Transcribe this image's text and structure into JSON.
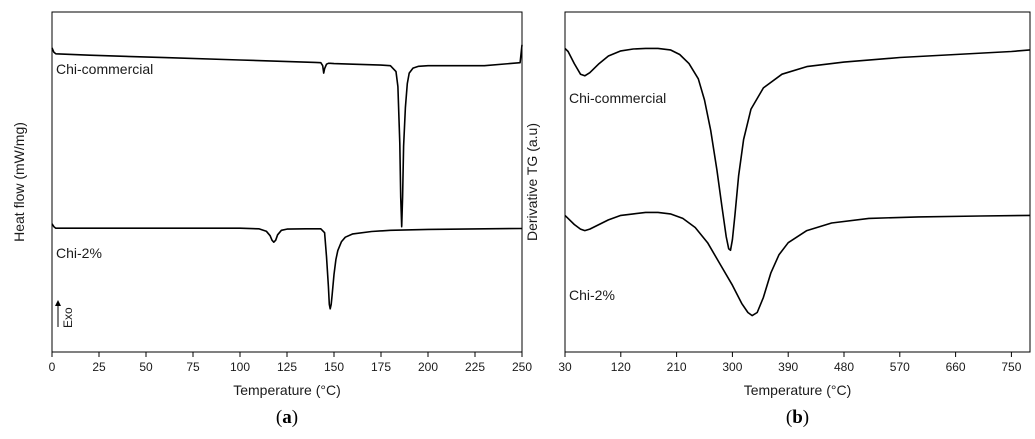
{
  "chart_data": [
    {
      "type": "line",
      "panel_label": {
        "open": "(",
        "letter": "a",
        "close": ")"
      },
      "xlabel": "Temperature (°C)",
      "ylabel": "Heat flow (mW/mg)",
      "xlim": [
        0,
        250
      ],
      "ylim": [
        -1.02,
        0.12
      ],
      "y_ticks_shown": false,
      "grid": false,
      "xticks": [
        0,
        25,
        50,
        75,
        100,
        125,
        150,
        175,
        200,
        225,
        250
      ],
      "annotation": {
        "text": "Exo",
        "direction": "up"
      },
      "series": [
        {
          "name": "Chi-commercial",
          "x": [
            0,
            1,
            2,
            20,
            60,
            100,
            140,
            143,
            144,
            144.5,
            145,
            146,
            147,
            148,
            150,
            160,
            175,
            180,
            183,
            184,
            185,
            185.5,
            186,
            186.5,
            187,
            188,
            189,
            190,
            192,
            195,
            200,
            210,
            230,
            249,
            250
          ],
          "y": [
            0.0,
            -0.015,
            -0.02,
            -0.025,
            -0.033,
            -0.041,
            -0.049,
            -0.05,
            -0.06,
            -0.085,
            -0.07,
            -0.055,
            -0.052,
            -0.052,
            -0.053,
            -0.055,
            -0.058,
            -0.06,
            -0.08,
            -0.13,
            -0.32,
            -0.5,
            -0.6,
            -0.5,
            -0.33,
            -0.2,
            -0.12,
            -0.085,
            -0.068,
            -0.062,
            -0.06,
            -0.06,
            -0.06,
            -0.05,
            0.01
          ]
        },
        {
          "name": "Chi-2%",
          "x": [
            0,
            1,
            2,
            20,
            60,
            100,
            110,
            114,
            116,
            117,
            118,
            119,
            120,
            122,
            125,
            135,
            143,
            145,
            146,
            147,
            147.5,
            148,
            148.5,
            149,
            150,
            151,
            152,
            154,
            156,
            160,
            170,
            180,
            200,
            230,
            250
          ],
          "y": [
            -0.59,
            -0.6,
            -0.605,
            -0.605,
            -0.605,
            -0.605,
            -0.607,
            -0.615,
            -0.63,
            -0.645,
            -0.652,
            -0.645,
            -0.627,
            -0.612,
            -0.608,
            -0.607,
            -0.607,
            -0.62,
            -0.7,
            -0.8,
            -0.86,
            -0.875,
            -0.86,
            -0.83,
            -0.76,
            -0.71,
            -0.68,
            -0.65,
            -0.635,
            -0.624,
            -0.616,
            -0.612,
            -0.609,
            -0.607,
            -0.606
          ]
        }
      ]
    },
    {
      "type": "line",
      "panel_label": {
        "open": "(",
        "letter": "b",
        "close": ")"
      },
      "xlabel": "Temperature (°C)",
      "ylabel": "Derivative TG (a.u)",
      "xlim": [
        30,
        780
      ],
      "ylim": [
        -1.0,
        0.12
      ],
      "y_ticks_shown": false,
      "grid": false,
      "xticks": [
        30,
        120,
        210,
        300,
        390,
        480,
        570,
        660,
        750
      ],
      "series": [
        {
          "name": "Chi-commercial",
          "x": [
            30,
            35,
            45,
            55,
            62,
            70,
            85,
            100,
            120,
            140,
            160,
            180,
            200,
            215,
            230,
            245,
            255,
            265,
            275,
            283,
            290,
            294,
            297,
            300,
            304,
            310,
            318,
            330,
            350,
            380,
            420,
            480,
            570,
            660,
            750,
            780
          ],
          "y": [
            0.0,
            -0.01,
            -0.05,
            -0.085,
            -0.09,
            -0.08,
            -0.05,
            -0.025,
            -0.008,
            -0.002,
            0.0,
            0.0,
            -0.005,
            -0.02,
            -0.05,
            -0.1,
            -0.17,
            -0.27,
            -0.4,
            -0.52,
            -0.62,
            -0.66,
            -0.665,
            -0.63,
            -0.55,
            -0.42,
            -0.3,
            -0.2,
            -0.13,
            -0.085,
            -0.06,
            -0.045,
            -0.03,
            -0.02,
            -0.01,
            -0.005
          ]
        },
        {
          "name": "Chi-2%",
          "x": [
            30,
            35,
            45,
            55,
            62,
            70,
            85,
            100,
            120,
            140,
            160,
            180,
            200,
            220,
            240,
            260,
            280,
            300,
            315,
            325,
            332,
            340,
            350,
            362,
            375,
            390,
            420,
            460,
            520,
            600,
            700,
            780
          ],
          "y": [
            -0.55,
            -0.56,
            -0.58,
            -0.595,
            -0.6,
            -0.595,
            -0.58,
            -0.565,
            -0.55,
            -0.545,
            -0.54,
            -0.54,
            -0.545,
            -0.56,
            -0.59,
            -0.64,
            -0.71,
            -0.78,
            -0.84,
            -0.87,
            -0.88,
            -0.87,
            -0.82,
            -0.74,
            -0.68,
            -0.64,
            -0.6,
            -0.575,
            -0.56,
            -0.555,
            -0.552,
            -0.55
          ]
        }
      ]
    }
  ]
}
